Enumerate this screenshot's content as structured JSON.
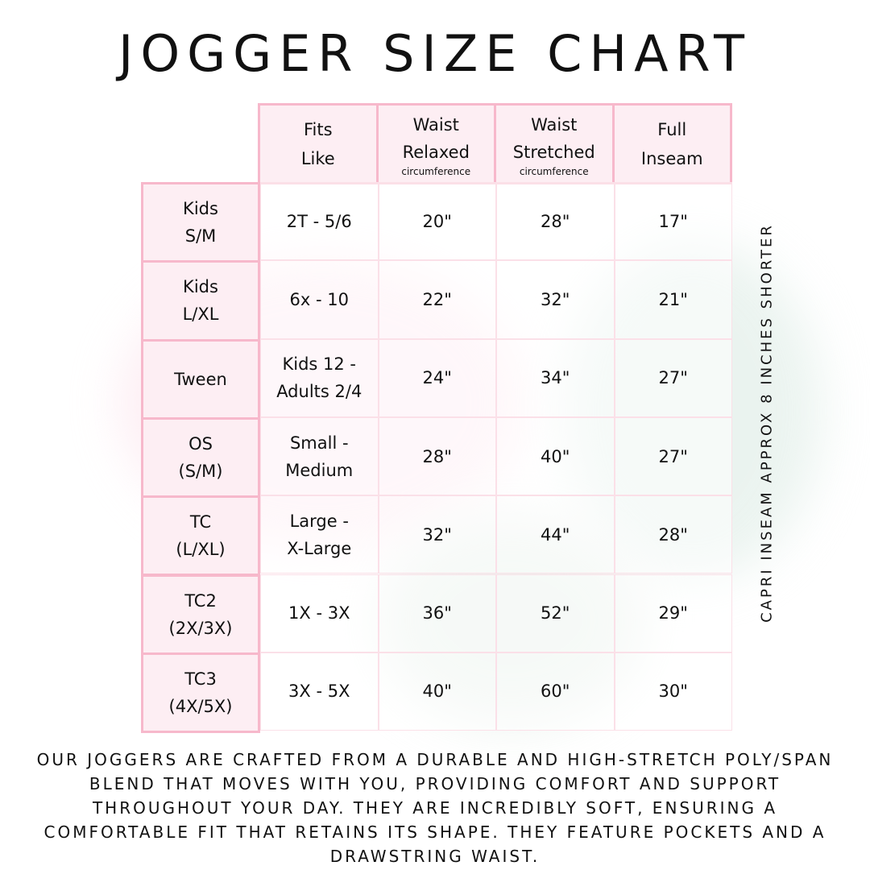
{
  "title": "JOGGER SIZE CHART",
  "columns": [
    {
      "line1": "Fits",
      "line2": "Like",
      "sub": ""
    },
    {
      "line1": "Waist",
      "line2": "Relaxed",
      "sub": "circumference"
    },
    {
      "line1": "Waist",
      "line2": "Stretched",
      "sub": "circumference"
    },
    {
      "line1": "Full",
      "line2": "Inseam",
      "sub": ""
    }
  ],
  "rows": [
    {
      "size": [
        "Kids",
        "S/M"
      ],
      "fits": [
        "2T - 5/6"
      ],
      "relaxed": "20\"",
      "stretched": "28\"",
      "inseam": "17\""
    },
    {
      "size": [
        "Kids",
        "L/XL"
      ],
      "fits": [
        "6x - 10"
      ],
      "relaxed": "22\"",
      "stretched": "32\"",
      "inseam": "21\""
    },
    {
      "size": [
        "Tween"
      ],
      "fits": [
        "Kids 12 -",
        "Adults 2/4"
      ],
      "relaxed": "24\"",
      "stretched": "34\"",
      "inseam": "27\""
    },
    {
      "size": [
        "OS",
        "(S/M)"
      ],
      "fits": [
        "Small -",
        "Medium"
      ],
      "relaxed": "28\"",
      "stretched": "40\"",
      "inseam": "27\""
    },
    {
      "size": [
        "TC",
        "(L/XL)"
      ],
      "fits": [
        "Large -",
        "X-Large"
      ],
      "relaxed": "32\"",
      "stretched": "44\"",
      "inseam": "28\""
    },
    {
      "size": [
        "TC2",
        "(2X/3X)"
      ],
      "fits": [
        "1X - 3X"
      ],
      "relaxed": "36\"",
      "stretched": "52\"",
      "inseam": "29\""
    },
    {
      "size": [
        "TC3",
        "(4X/5X)"
      ],
      "fits": [
        "3X - 5X"
      ],
      "relaxed": "40\"",
      "stretched": "60\"",
      "inseam": "30\""
    }
  ],
  "side_note": "CAPRI INSEAM APPROX 8 INCHES SHORTER",
  "description": "Our joggers are crafted from a durable and high-stretch poly/span blend that moves with you, providing comfort and support throughout your day. They are incredibly soft, ensuring a comfortable fit that retains its shape. They feature pockets and a drawstring waist.",
  "colors": {
    "border": "#f7b8cb",
    "header_fill": "#fdeef3"
  }
}
